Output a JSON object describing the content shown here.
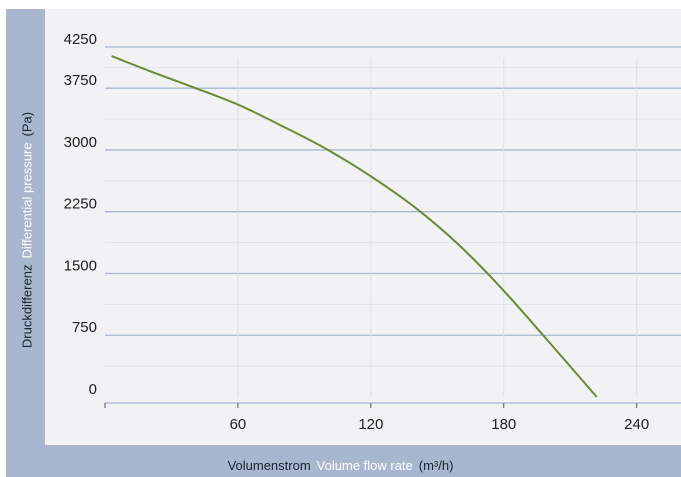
{
  "chart_data": {
    "type": "line",
    "xlabel": {
      "de": "Volumenstrom",
      "en": "Volume flow rate",
      "unit": "(m³/h)"
    },
    "ylabel": {
      "de": "Druckdifferenz",
      "en": "Differential pressure",
      "unit": "(Pa)"
    },
    "xlim": [
      0,
      260
    ],
    "ylim": [
      0,
      4250
    ],
    "x_ticks": [
      60,
      120,
      180,
      240
    ],
    "x_tick_labels": [
      "60",
      "120",
      "180",
      "240"
    ],
    "y_ticks": [
      0,
      750,
      1500,
      2250,
      3000,
      3750,
      4250
    ],
    "y_tick_labels": [
      "0",
      "750",
      "1500",
      "2250",
      "3000",
      "3750",
      "4250"
    ],
    "grid": true,
    "series": [
      {
        "color": "#6b8a33",
        "x": [
          3,
          20,
          40,
          60,
          80,
          100,
          120,
          140,
          160,
          180,
          200,
          222
        ],
        "y": [
          4140,
          3960,
          3760,
          3550,
          3290,
          3010,
          2680,
          2300,
          1840,
          1290,
          680,
          0
        ]
      }
    ]
  },
  "colors": {
    "frame": "#a8b7cf",
    "panel": "#f2f2f5",
    "grid_major": "#a8b7cf",
    "grid_minor": "#dde1ea",
    "line": "#6b8a33"
  }
}
